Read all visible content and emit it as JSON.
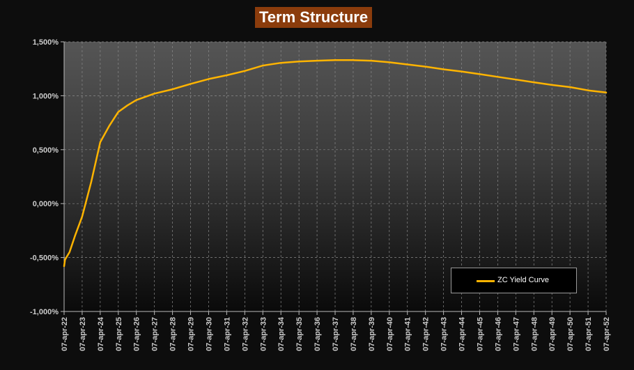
{
  "chart_data": {
    "type": "line",
    "title": "Term Structure",
    "xlabel": "",
    "ylabel": "",
    "categories": [
      "07-apr-22",
      "07-apr-23",
      "07-apr-24",
      "07-apr-25",
      "07-apr-26",
      "07-apr-27",
      "07-apr-28",
      "07-apr-29",
      "07-apr-30",
      "07-apr-31",
      "07-apr-32",
      "07-apr-33",
      "07-apr-34",
      "07-apr-35",
      "07-apr-36",
      "07-apr-37",
      "07-apr-38",
      "07-apr-39",
      "07-apr-40",
      "07-apr-41",
      "07-apr-42",
      "07-apr-43",
      "07-apr-44",
      "07-apr-45",
      "07-apr-46",
      "07-apr-47",
      "07-apr-48",
      "07-apr-49",
      "07-apr-50",
      "07-apr-51",
      "07-apr-52"
    ],
    "y_ticks": [
      "-1,000%",
      "-0,500%",
      "0,000%",
      "0,500%",
      "1,000%",
      "1,500%"
    ],
    "ylim": [
      -1.0,
      1.5
    ],
    "grid": true,
    "legend_position": "bottom-right",
    "series": [
      {
        "name": "ZC Yield Curve",
        "color": "#ffb400",
        "x": [
          0,
          0.05,
          0.3,
          0.6,
          1,
          1.5,
          2,
          2.5,
          3,
          3.5,
          4,
          5,
          6,
          7,
          8,
          9,
          10,
          11,
          12,
          13,
          14,
          15,
          16,
          17,
          18,
          19,
          20,
          21,
          22,
          23,
          24,
          25,
          26,
          27,
          28,
          29,
          30
        ],
        "y": [
          -0.58,
          -0.52,
          -0.45,
          -0.3,
          -0.12,
          0.2,
          0.57,
          0.72,
          0.85,
          0.91,
          0.96,
          1.02,
          1.06,
          1.11,
          1.155,
          1.19,
          1.23,
          1.28,
          1.305,
          1.318,
          1.325,
          1.33,
          1.33,
          1.325,
          1.31,
          1.29,
          1.27,
          1.245,
          1.225,
          1.2,
          1.175,
          1.15,
          1.125,
          1.1,
          1.08,
          1.05,
          1.03
        ]
      }
    ]
  },
  "legend": {
    "label": "ZC Yield Curve",
    "color": "#ffb400"
  }
}
